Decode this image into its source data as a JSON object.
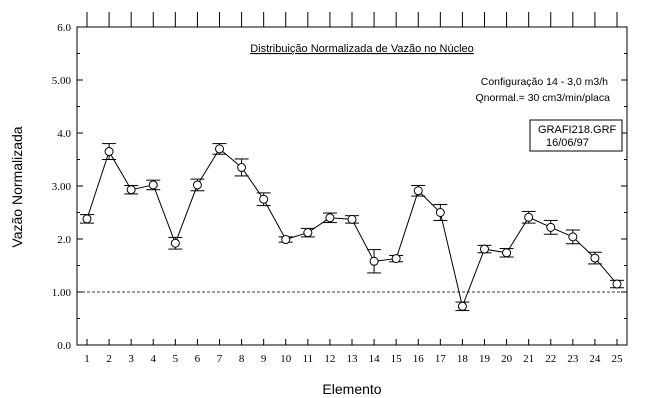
{
  "chart_data": {
    "type": "line",
    "title": "Distribuição Normalizada de Vazão no Núcleo",
    "annotations": {
      "config": "Configuração 14 - 3,0 m3/h",
      "qnormal": "Qnormal.= 30 cm3/min/placa",
      "file": "GRAFI218.GRF",
      "date": "16/06/97"
    },
    "xlabel": "Elemento",
    "ylabel": "Vazão Normalizada",
    "xlim": [
      1,
      25
    ],
    "ylim": [
      0,
      6
    ],
    "xticks": [
      "1",
      "2",
      "3",
      "4",
      "5",
      "6",
      "7",
      "8",
      "9",
      "10",
      "11",
      "12",
      "13",
      "14",
      "15",
      "16",
      "17",
      "18",
      "19",
      "20",
      "21",
      "22",
      "23",
      "24",
      "25"
    ],
    "yticks": [
      {
        "value": 0,
        "label": "0.0"
      },
      {
        "value": 1,
        "label": "1.00"
      },
      {
        "value": 2,
        "label": "2.0"
      },
      {
        "value": 3,
        "label": "3.00"
      },
      {
        "value": 4,
        "label": "4.0"
      },
      {
        "value": 5,
        "label": "5.00"
      },
      {
        "value": 6,
        "label": "6.0"
      }
    ],
    "reference_line": 1.0,
    "marker": "open-circle",
    "series": [
      {
        "x": [
          1,
          2,
          3,
          4,
          5,
          6,
          7,
          8,
          9,
          10,
          11,
          12,
          13,
          14,
          15,
          16,
          17,
          18,
          19,
          20,
          21,
          22,
          23,
          24,
          25
        ],
        "y": [
          2.38,
          3.65,
          2.93,
          3.02,
          1.92,
          3.02,
          3.7,
          3.35,
          2.75,
          1.99,
          2.12,
          2.4,
          2.37,
          1.58,
          1.63,
          2.91,
          2.5,
          0.73,
          1.81,
          1.74,
          2.41,
          2.22,
          2.04,
          1.64,
          1.15
        ],
        "err": [
          0.08,
          0.15,
          0.08,
          0.09,
          0.11,
          0.11,
          0.1,
          0.16,
          0.12,
          0.05,
          0.08,
          0.09,
          0.07,
          0.22,
          0.06,
          0.1,
          0.15,
          0.08,
          0.07,
          0.08,
          0.11,
          0.13,
          0.13,
          0.11,
          0.07
        ]
      }
    ]
  }
}
